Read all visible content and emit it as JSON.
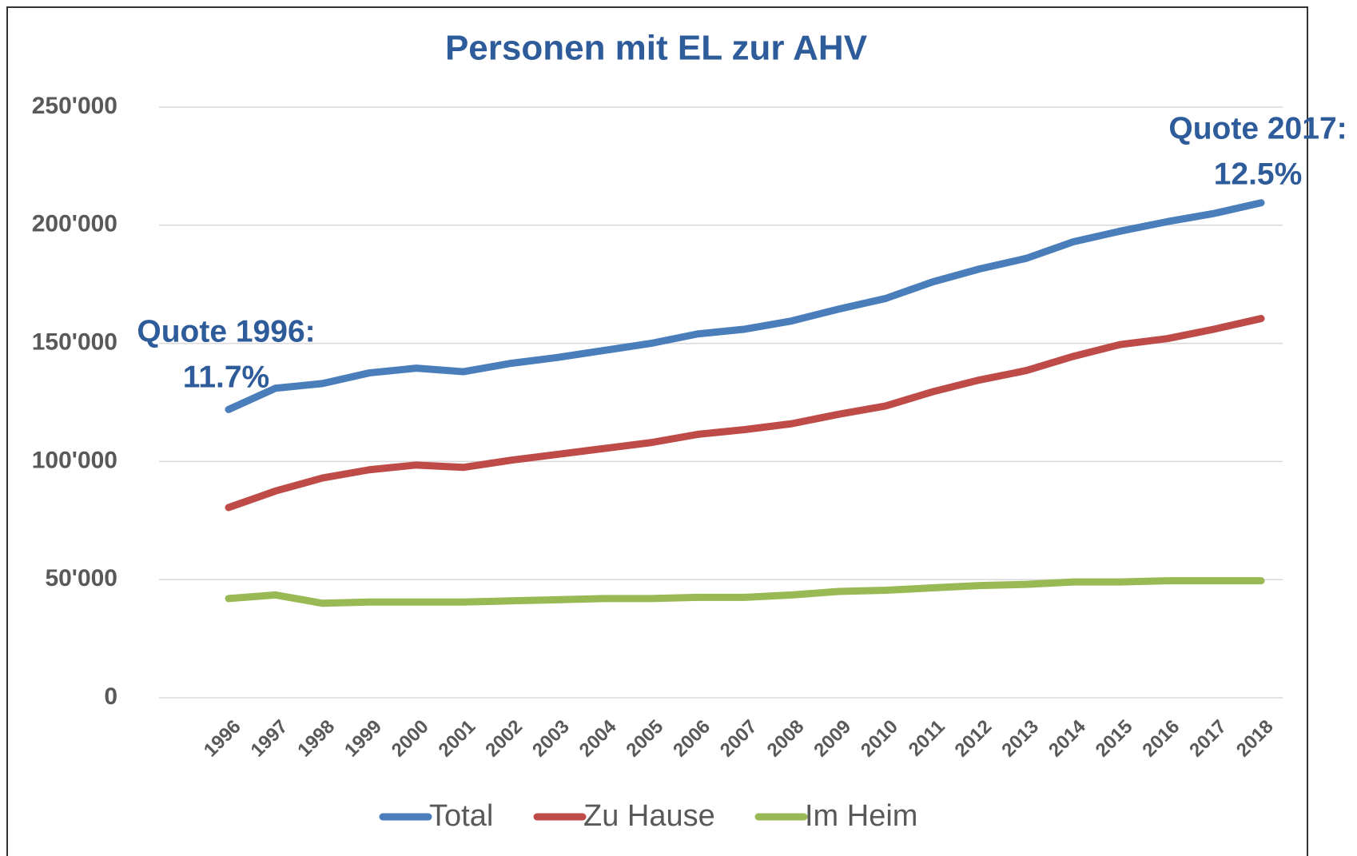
{
  "chart_data": {
    "type": "line",
    "title": "Personen mit EL zur AHV",
    "categories": [
      "1996",
      "1997",
      "1998",
      "1999",
      "2000",
      "2001",
      "2002",
      "2003",
      "2004",
      "2005",
      "2006",
      "2007",
      "2008",
      "2009",
      "2010",
      "2011",
      "2012",
      "2013",
      "2014",
      "2015",
      "2016",
      "2017",
      "2018"
    ],
    "series": [
      {
        "name": "Total",
        "color": "#4a7ebb",
        "values": [
          122000,
          131000,
          133000,
          137500,
          139500,
          138000,
          141500,
          144000,
          147000,
          150000,
          154000,
          156000,
          159500,
          164500,
          169000,
          176000,
          181500,
          186000,
          193000,
          197500,
          201500,
          205000,
          209500
        ]
      },
      {
        "name": "Zu Hause",
        "color": "#be4b48",
        "values": [
          80500,
          87500,
          93000,
          96500,
          98500,
          97500,
          100500,
          103000,
          105500,
          108000,
          111500,
          113500,
          116000,
          120000,
          123500,
          129500,
          134500,
          138500,
          144500,
          149500,
          152000,
          156000,
          160500
        ]
      },
      {
        "name": "Im Heim",
        "color": "#98b954",
        "values": [
          42000,
          43500,
          40000,
          40500,
          40500,
          40500,
          41000,
          41500,
          42000,
          42000,
          42500,
          42500,
          43500,
          45000,
          45500,
          46500,
          47500,
          48000,
          49000,
          49000,
          49500,
          49500,
          49500
        ]
      }
    ],
    "ylim": [
      0,
      250000
    ],
    "yticks": [
      0,
      {
        "value": 50000,
        "label": "50'000"
      },
      {
        "value": 100000,
        "label": "100'000"
      },
      {
        "value": 150000,
        "label": "150'000"
      },
      {
        "value": 200000,
        "label": "200'000"
      },
      {
        "value": 250000,
        "label": "250'000"
      }
    ],
    "grid": true,
    "legend": "bottom",
    "annotations": [
      {
        "lines": [
          "Quote 1996:",
          "11.7%"
        ]
      },
      {
        "lines": [
          "Quote 2017:",
          "12.5%"
        ]
      }
    ]
  }
}
